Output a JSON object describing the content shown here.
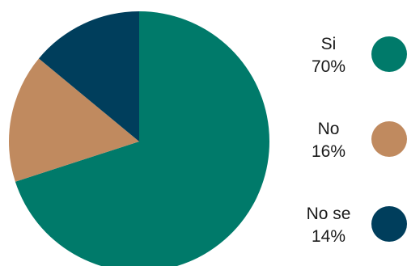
{
  "chart_data": {
    "type": "pie",
    "title": "",
    "categories": [
      "Si",
      "No",
      "No se"
    ],
    "values": [
      70,
      16,
      14
    ],
    "value_labels": [
      "70%",
      "16%",
      "14%"
    ],
    "unit": "%",
    "colors": [
      "#007A6A",
      "#C08A5F",
      "#003E5C"
    ],
    "start_angle_deg": 0,
    "direction": "clockwise",
    "legend_position": "right",
    "legend_marker": "circle"
  }
}
